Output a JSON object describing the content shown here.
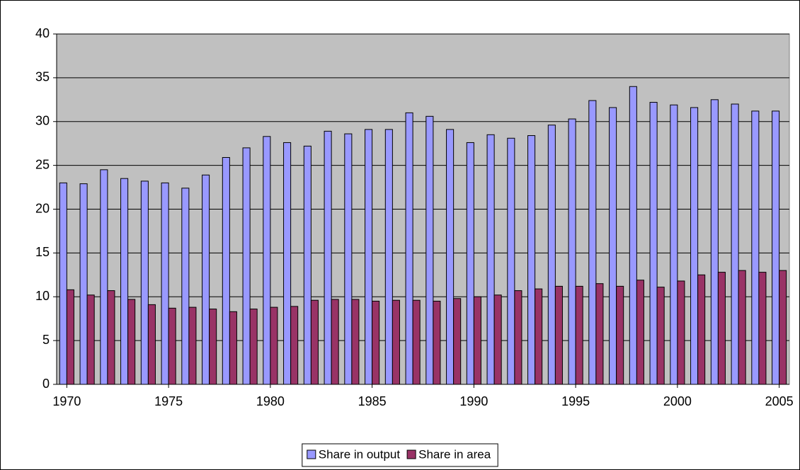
{
  "chart_data": {
    "type": "bar",
    "x": [
      1970,
      1971,
      1972,
      1973,
      1974,
      1975,
      1976,
      1977,
      1978,
      1979,
      1980,
      1981,
      1982,
      1983,
      1984,
      1985,
      1986,
      1987,
      1988,
      1989,
      1990,
      1991,
      1992,
      1993,
      1994,
      1995,
      1996,
      1997,
      1998,
      1999,
      2000,
      2001,
      2002,
      2003,
      2004,
      2005
    ],
    "series": [
      {
        "name": "Share in output",
        "color": "#9999ff",
        "values": [
          23.0,
          22.9,
          24.5,
          23.5,
          23.2,
          23.0,
          22.4,
          23.9,
          25.9,
          27.0,
          28.3,
          27.6,
          27.2,
          28.9,
          28.6,
          29.1,
          29.1,
          31.0,
          30.6,
          29.1,
          27.6,
          28.5,
          28.1,
          28.4,
          29.6,
          30.3,
          32.4,
          31.6,
          34.0,
          32.2,
          31.9,
          31.6,
          32.5,
          32.0,
          31.2,
          31.2
        ]
      },
      {
        "name": "Share in area",
        "color": "#993366",
        "values": [
          10.8,
          10.2,
          10.7,
          9.7,
          9.1,
          8.7,
          8.8,
          8.6,
          8.3,
          8.6,
          8.8,
          8.9,
          9.6,
          9.7,
          9.7,
          9.5,
          9.6,
          9.6,
          9.5,
          9.8,
          10.0,
          10.2,
          10.7,
          10.9,
          11.2,
          11.2,
          11.5,
          11.2,
          11.9,
          11.1,
          11.8,
          12.5,
          12.8,
          13.0,
          12.8,
          13.0
        ]
      }
    ],
    "xlim": [
      1969.5,
      2005.5
    ],
    "xticks": [
      1970,
      1975,
      1980,
      1985,
      1990,
      1995,
      2000,
      2005
    ],
    "ylim": [
      0,
      40
    ],
    "yticks": [
      0,
      5,
      10,
      15,
      20,
      25,
      30,
      35,
      40
    ],
    "grid": true,
    "legend": "bottom"
  }
}
